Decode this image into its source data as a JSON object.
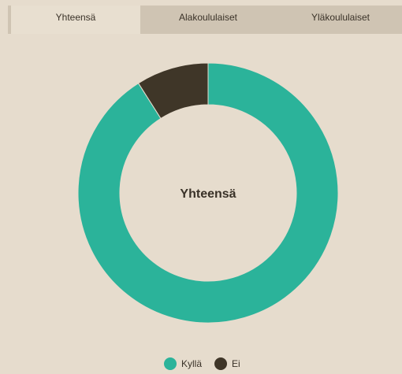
{
  "tabs": [
    "Yhteensä",
    "Alakoululaiset",
    "Yläkoululaiset"
  ],
  "chart_data": {
    "type": "doughnut",
    "title": "Yhteensä",
    "categories": [
      "Kyllä",
      "Ei"
    ],
    "values": [
      91,
      9
    ],
    "colors": [
      "#2bb39a",
      "#3f3628"
    ],
    "legend": "bottom"
  }
}
